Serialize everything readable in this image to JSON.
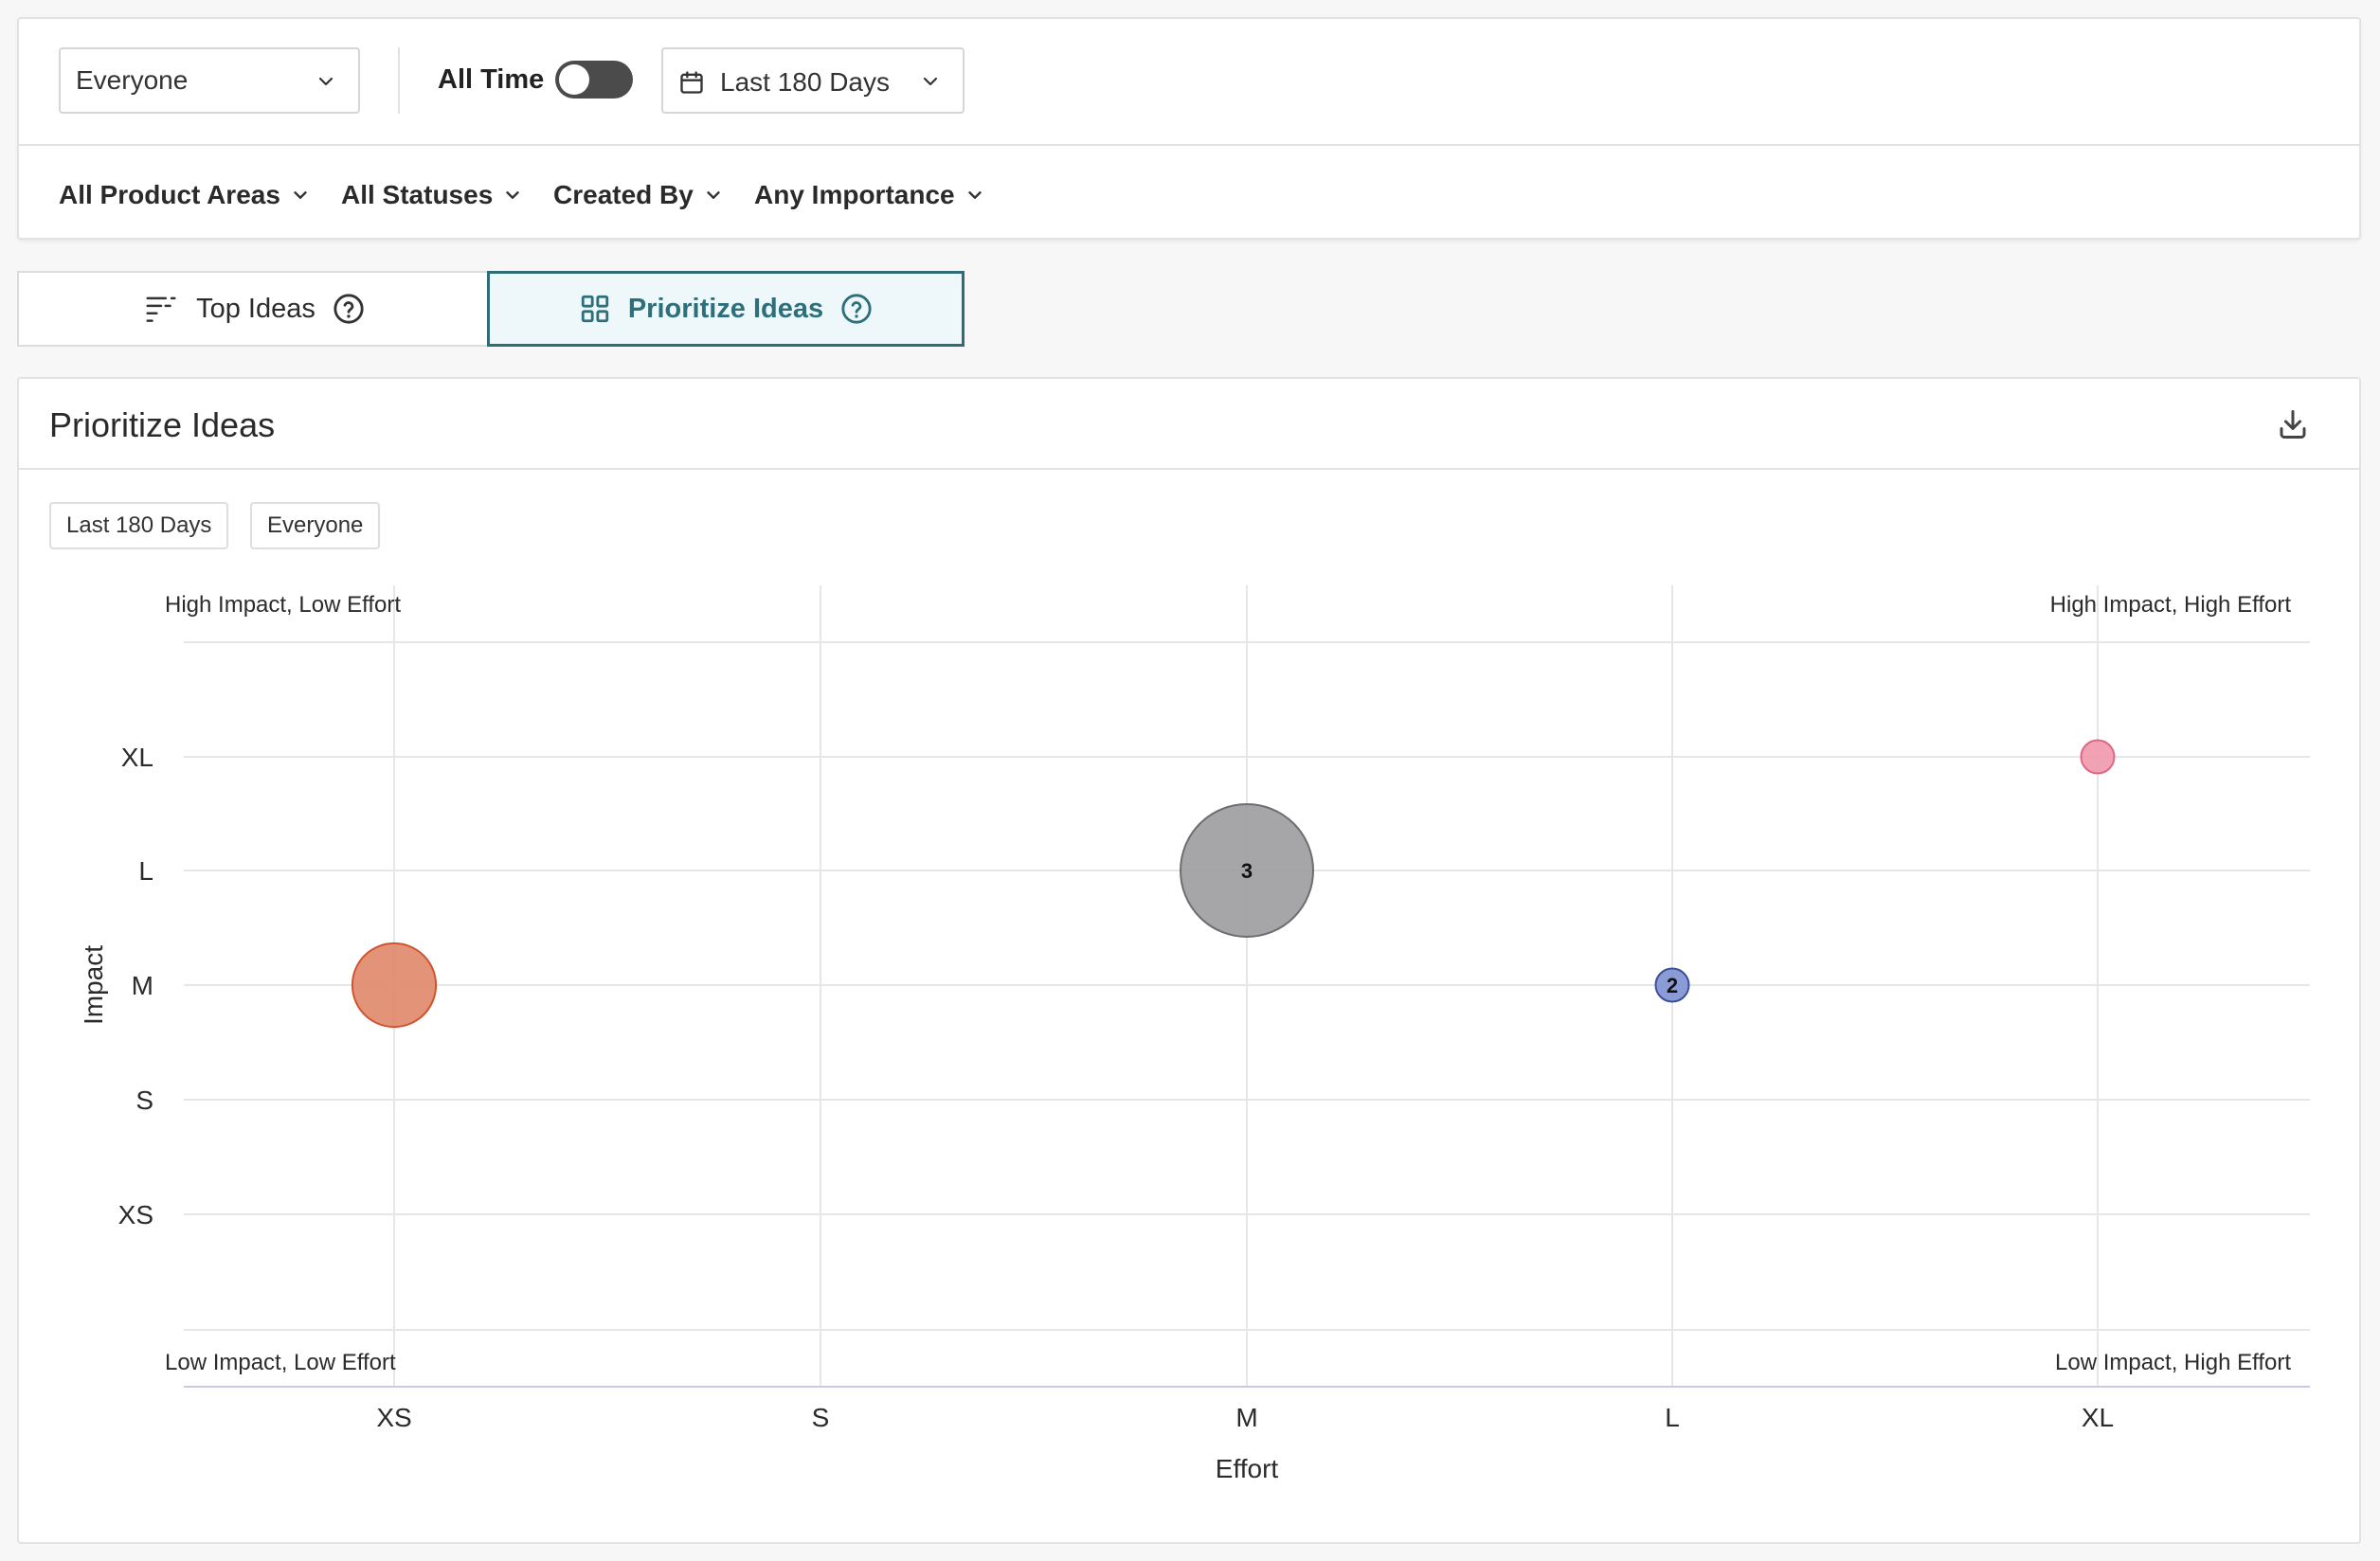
{
  "filters": {
    "audience_select": "Everyone",
    "all_time_label": "All Time",
    "all_time_enabled": false,
    "date_range": "Last 180 Days",
    "dropdowns": [
      "All Product Areas",
      "All Statuses",
      "Created By",
      "Any Importance"
    ]
  },
  "tabs": {
    "top_ideas": "Top Ideas",
    "prioritize_ideas": "Prioritize Ideas",
    "active": "prioritize_ideas"
  },
  "card": {
    "title": "Prioritize Ideas",
    "chips": [
      "Last 180 Days",
      "Everyone"
    ]
  },
  "colors": {
    "accent": "#2f6c78",
    "bubble_orange": "#e08a6d",
    "bubble_gray": "#9e9ea2",
    "bubble_blue": "#8193d3",
    "bubble_pink": "#f09aae"
  },
  "chart_data": {
    "type": "scatter",
    "xlabel": "Effort",
    "ylabel": "Impact",
    "x_categories": [
      "XS",
      "S",
      "M",
      "L",
      "XL"
    ],
    "y_categories": [
      "XS",
      "S",
      "M",
      "L",
      "XL"
    ],
    "quadrant_labels": {
      "top_left": "High Impact, Low Effort",
      "top_right": "High Impact, High Effort",
      "bottom_left": "Low Impact, Low Effort",
      "bottom_right": "Low Impact, High Effort"
    },
    "grid": true,
    "points": [
      {
        "effort": "XS",
        "impact": "M",
        "count": null,
        "relative_size": 0.63,
        "color": "#e08a6d",
        "stroke": "#d0532e"
      },
      {
        "effort": "M",
        "impact": "L",
        "count": 3,
        "relative_size": 1.0,
        "color": "#9e9ea2",
        "stroke": "#6e6e72"
      },
      {
        "effort": "L",
        "impact": "M",
        "count": 2,
        "relative_size": 0.25,
        "color": "#8193d3",
        "stroke": "#3c4e9a"
      },
      {
        "effort": "XL",
        "impact": "XL",
        "count": null,
        "relative_size": 0.25,
        "color": "#f09aae",
        "stroke": "#e06684"
      }
    ]
  }
}
